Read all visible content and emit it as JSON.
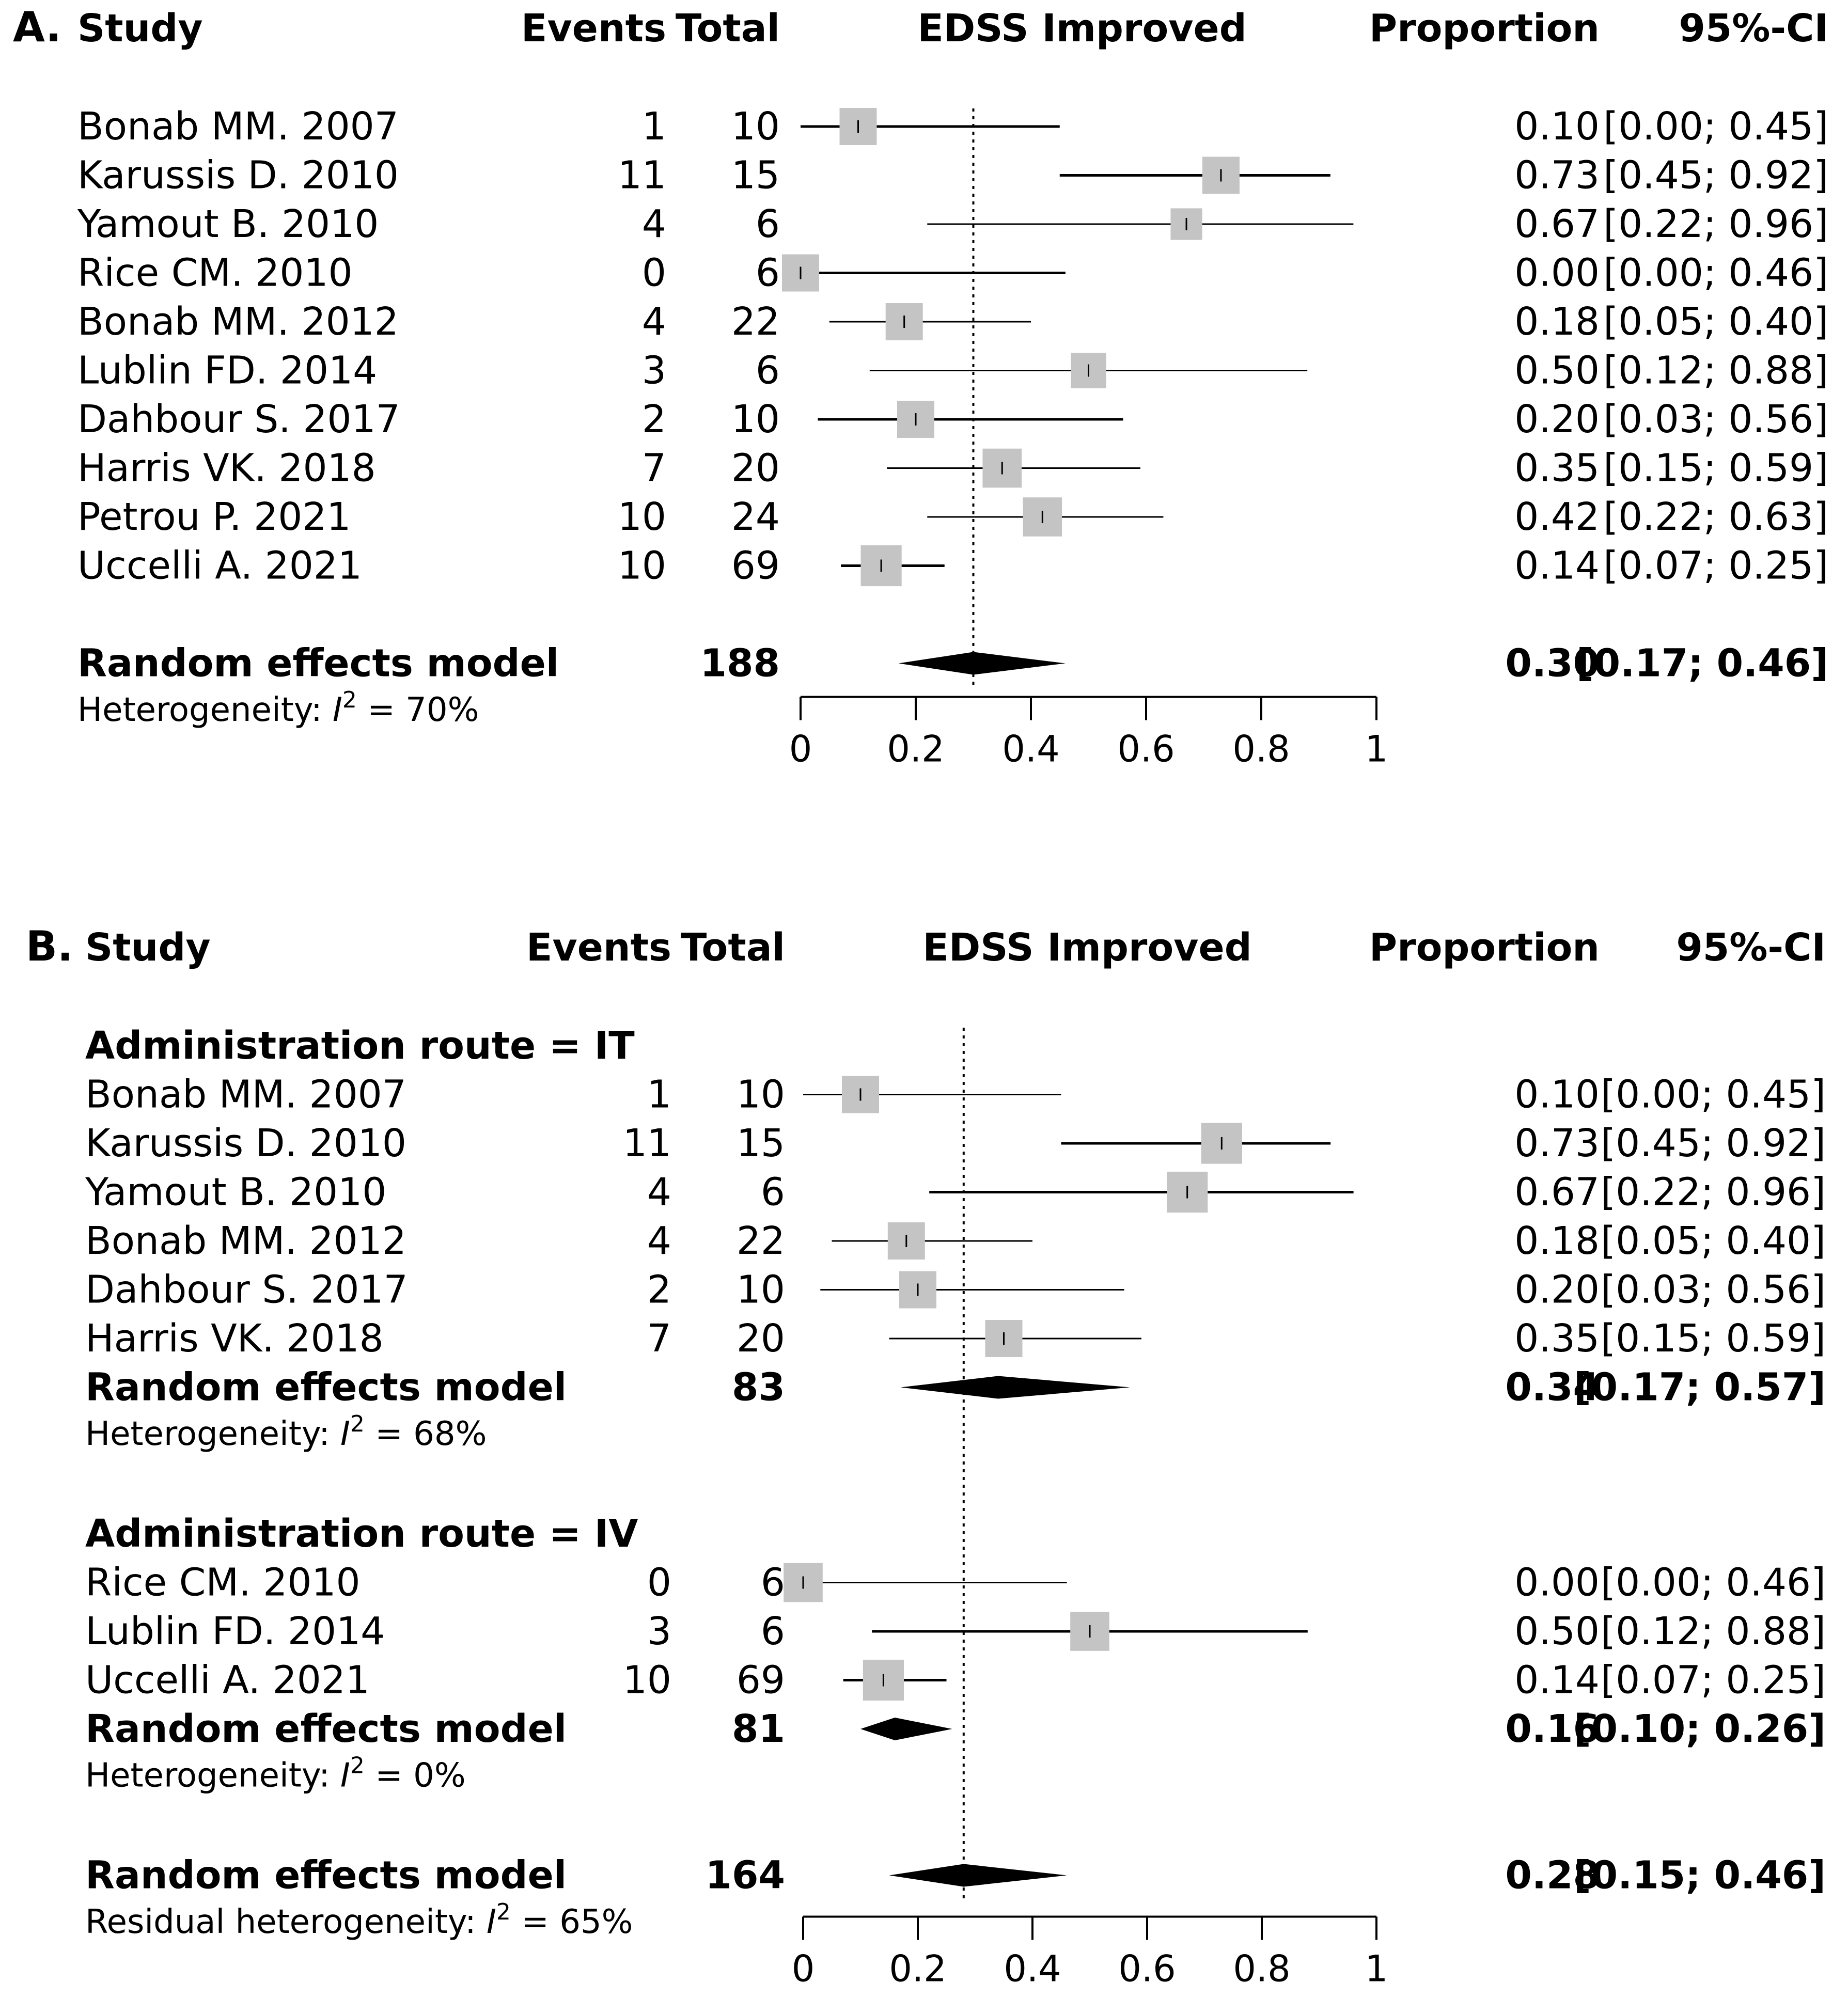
{
  "chart_data": [
    {
      "type": "forest",
      "panel_label": "A.",
      "headers": {
        "study": "Study",
        "events": "Events",
        "total": "Total",
        "plot": "EDSS Improved",
        "proportion": "Proportion",
        "ci": "95%-CI"
      },
      "xlim": [
        0,
        1
      ],
      "ticks": [
        "0",
        "0.2",
        "0.4",
        "0.6",
        "0.8",
        "1"
      ],
      "tick_values": [
        0,
        0.2,
        0.4,
        0.6,
        0.8,
        1
      ],
      "reference_line": 0.3,
      "rows": [
        {
          "kind": "study",
          "study": "Bonab MM. 2007",
          "events": "1",
          "total": "10",
          "prop": "0.10",
          "ci": "[0.00; 0.45]",
          "est": 0.1,
          "lo": 0.0,
          "hi": 0.45,
          "w": 1.0,
          "thick": true
        },
        {
          "kind": "study",
          "study": "Karussis D. 2010",
          "events": "11",
          "total": "15",
          "prop": "0.73",
          "ci": "[0.45; 0.92]",
          "est": 0.73,
          "lo": 0.45,
          "hi": 0.92,
          "w": 1.0,
          "thick": true
        },
        {
          "kind": "study",
          "study": "Yamout B. 2010",
          "events": "4",
          "total": "6",
          "prop": "0.67",
          "ci": "[0.22; 0.96]",
          "est": 0.67,
          "lo": 0.22,
          "hi": 0.96,
          "w": 0.85,
          "thick": false
        },
        {
          "kind": "study",
          "study": "Rice CM. 2010",
          "events": "0",
          "total": "6",
          "prop": "0.00",
          "ci": "[0.00; 0.46]",
          "est": 0.0,
          "lo": 0.0,
          "hi": 0.46,
          "w": 1.0,
          "thick": true
        },
        {
          "kind": "study",
          "study": "Bonab MM. 2012",
          "events": "4",
          "total": "22",
          "prop": "0.18",
          "ci": "[0.05; 0.40]",
          "est": 0.18,
          "lo": 0.05,
          "hi": 0.4,
          "w": 1.0,
          "thick": false
        },
        {
          "kind": "study",
          "study": "Lublin FD. 2014",
          "events": "3",
          "total": "6",
          "prop": "0.50",
          "ci": "[0.12; 0.88]",
          "est": 0.5,
          "lo": 0.12,
          "hi": 0.88,
          "w": 0.95,
          "thick": false
        },
        {
          "kind": "study",
          "study": "Dahbour S. 2017",
          "events": "2",
          "total": "10",
          "prop": "0.20",
          "ci": "[0.03; 0.56]",
          "est": 0.2,
          "lo": 0.03,
          "hi": 0.56,
          "w": 1.0,
          "thick": true
        },
        {
          "kind": "study",
          "study": "Harris VK. 2018",
          "events": "7",
          "total": "20",
          "prop": "0.35",
          "ci": "[0.15; 0.59]",
          "est": 0.35,
          "lo": 0.15,
          "hi": 0.59,
          "w": 1.05,
          "thick": false
        },
        {
          "kind": "study",
          "study": "Petrou P. 2021",
          "events": "10",
          "total": "24",
          "prop": "0.42",
          "ci": "[0.22; 0.63]",
          "est": 0.42,
          "lo": 0.22,
          "hi": 0.63,
          "w": 1.05,
          "thick": false
        },
        {
          "kind": "study",
          "study": "Uccelli A. 2021",
          "events": "10",
          "total": "69",
          "prop": "0.14",
          "ci": "[0.07; 0.25]",
          "est": 0.14,
          "lo": 0.07,
          "hi": 0.25,
          "w": 1.1,
          "thick": true
        },
        {
          "kind": "blank"
        },
        {
          "kind": "summary",
          "study": "Random effects model",
          "total": "188",
          "prop": "0.30",
          "ci": "[0.17; 0.46]",
          "est": 0.3,
          "lo": 0.17,
          "hi": 0.46
        },
        {
          "kind": "het",
          "prefix": "Heterogeneity: ",
          "sym": "I",
          "sup": "2",
          "suffix": " = 70%"
        }
      ]
    },
    {
      "type": "forest",
      "panel_label": "B.",
      "headers": {
        "study": "Study",
        "events": "Events",
        "total": "Total",
        "plot": "EDSS Improved",
        "proportion": "Proportion",
        "ci": "95%-CI"
      },
      "xlim": [
        0,
        1
      ],
      "ticks": [
        "0",
        "0.2",
        "0.4",
        "0.6",
        "0.8",
        "1"
      ],
      "tick_values": [
        0,
        0.2,
        0.4,
        0.6,
        0.8,
        1
      ],
      "reference_line": 0.28,
      "rows": [
        {
          "kind": "group",
          "study": "Administration route = IT"
        },
        {
          "kind": "study",
          "study": "Bonab MM. 2007",
          "events": "1",
          "total": "10",
          "prop": "0.10",
          "ci": "[0.00; 0.45]",
          "est": 0.1,
          "lo": 0.0,
          "hi": 0.45,
          "w": 1.0,
          "thick": false
        },
        {
          "kind": "study",
          "study": "Karussis D. 2010",
          "events": "11",
          "total": "15",
          "prop": "0.73",
          "ci": "[0.45; 0.92]",
          "est": 0.73,
          "lo": 0.45,
          "hi": 0.92,
          "w": 1.1,
          "thick": true
        },
        {
          "kind": "study",
          "study": "Yamout B. 2010",
          "events": "4",
          "total": "6",
          "prop": "0.67",
          "ci": "[0.22; 0.96]",
          "est": 0.67,
          "lo": 0.22,
          "hi": 0.96,
          "w": 1.1,
          "thick": true
        },
        {
          "kind": "study",
          "study": "Bonab MM. 2012",
          "events": "4",
          "total": "22",
          "prop": "0.18",
          "ci": "[0.05; 0.40]",
          "est": 0.18,
          "lo": 0.05,
          "hi": 0.4,
          "w": 1.0,
          "thick": false
        },
        {
          "kind": "study",
          "study": "Dahbour S. 2017",
          "events": "2",
          "total": "10",
          "prop": "0.20",
          "ci": "[0.03; 0.56]",
          "est": 0.2,
          "lo": 0.03,
          "hi": 0.56,
          "w": 1.0,
          "thick": false
        },
        {
          "kind": "study",
          "study": "Harris VK. 2018",
          "events": "7",
          "total": "20",
          "prop": "0.35",
          "ci": "[0.15; 0.59]",
          "est": 0.35,
          "lo": 0.15,
          "hi": 0.59,
          "w": 1.0,
          "thick": false
        },
        {
          "kind": "summary",
          "study": "Random effects model",
          "total": "83",
          "prop": "0.34",
          "ci": "[0.17; 0.57]",
          "est": 0.34,
          "lo": 0.17,
          "hi": 0.57
        },
        {
          "kind": "het",
          "prefix": "Heterogeneity: ",
          "sym": "I",
          "sup": "2",
          "suffix": " = 68%"
        },
        {
          "kind": "blank"
        },
        {
          "kind": "group",
          "study": "Administration route = IV"
        },
        {
          "kind": "study",
          "study": "Rice CM. 2010",
          "events": "0",
          "total": "6",
          "prop": "0.00",
          "ci": "[0.00; 0.46]",
          "est": 0.0,
          "lo": 0.0,
          "hi": 0.46,
          "w": 1.05,
          "thick": false
        },
        {
          "kind": "study",
          "study": "Lublin FD. 2014",
          "events": "3",
          "total": "6",
          "prop": "0.50",
          "ci": "[0.12; 0.88]",
          "est": 0.5,
          "lo": 0.12,
          "hi": 0.88,
          "w": 1.05,
          "thick": true
        },
        {
          "kind": "study",
          "study": "Uccelli A. 2021",
          "events": "10",
          "total": "69",
          "prop": "0.14",
          "ci": "[0.07; 0.25]",
          "est": 0.14,
          "lo": 0.07,
          "hi": 0.25,
          "w": 1.1,
          "thick": true
        },
        {
          "kind": "summary",
          "study": "Random effects model",
          "total": "81",
          "prop": "0.16",
          "ci": "[0.10; 0.26]",
          "est": 0.16,
          "lo": 0.1,
          "hi": 0.26
        },
        {
          "kind": "het",
          "prefix": "Heterogeneity: ",
          "sym": "I",
          "sup": "2",
          "suffix": " = 0%"
        },
        {
          "kind": "blank"
        },
        {
          "kind": "summary",
          "study": "Random effects model",
          "total": "164",
          "prop": "0.28",
          "ci": "[0.15; 0.46]",
          "est": 0.28,
          "lo": 0.15,
          "hi": 0.46
        },
        {
          "kind": "het",
          "prefix": "Residual heterogeneity: ",
          "sym": "I",
          "sup": "2",
          "suffix": " = 65%"
        }
      ]
    }
  ]
}
